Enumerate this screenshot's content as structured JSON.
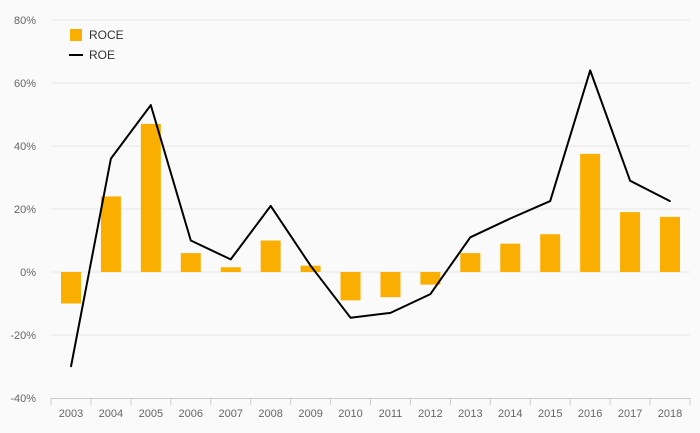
{
  "chart_data": {
    "type": "bar",
    "categories": [
      "2003",
      "2004",
      "2005",
      "2006",
      "2007",
      "2008",
      "2009",
      "2010",
      "2011",
      "2012",
      "2013",
      "2014",
      "2015",
      "2016",
      "2017",
      "2018"
    ],
    "series": [
      {
        "name": "ROCE",
        "type": "bar",
        "color": "#f9ae00",
        "values": [
          -10,
          24,
          47,
          6,
          1.5,
          10,
          2,
          -9,
          -8,
          -4,
          6,
          9,
          12,
          37.5,
          19,
          17.5
        ]
      },
      {
        "name": "ROE",
        "type": "line",
        "color": "#000000",
        "values": [
          -30,
          36,
          53,
          10,
          4,
          21,
          2,
          -14.5,
          -13,
          -7,
          11,
          17,
          22.5,
          64,
          29,
          22.5
        ]
      }
    ],
    "yticks": [
      "-40%",
      "-20%",
      "0%",
      "20%",
      "40%",
      "60%",
      "80%"
    ],
    "ylim": [
      -40,
      80
    ],
    "grid": true,
    "legend": "top-left"
  }
}
